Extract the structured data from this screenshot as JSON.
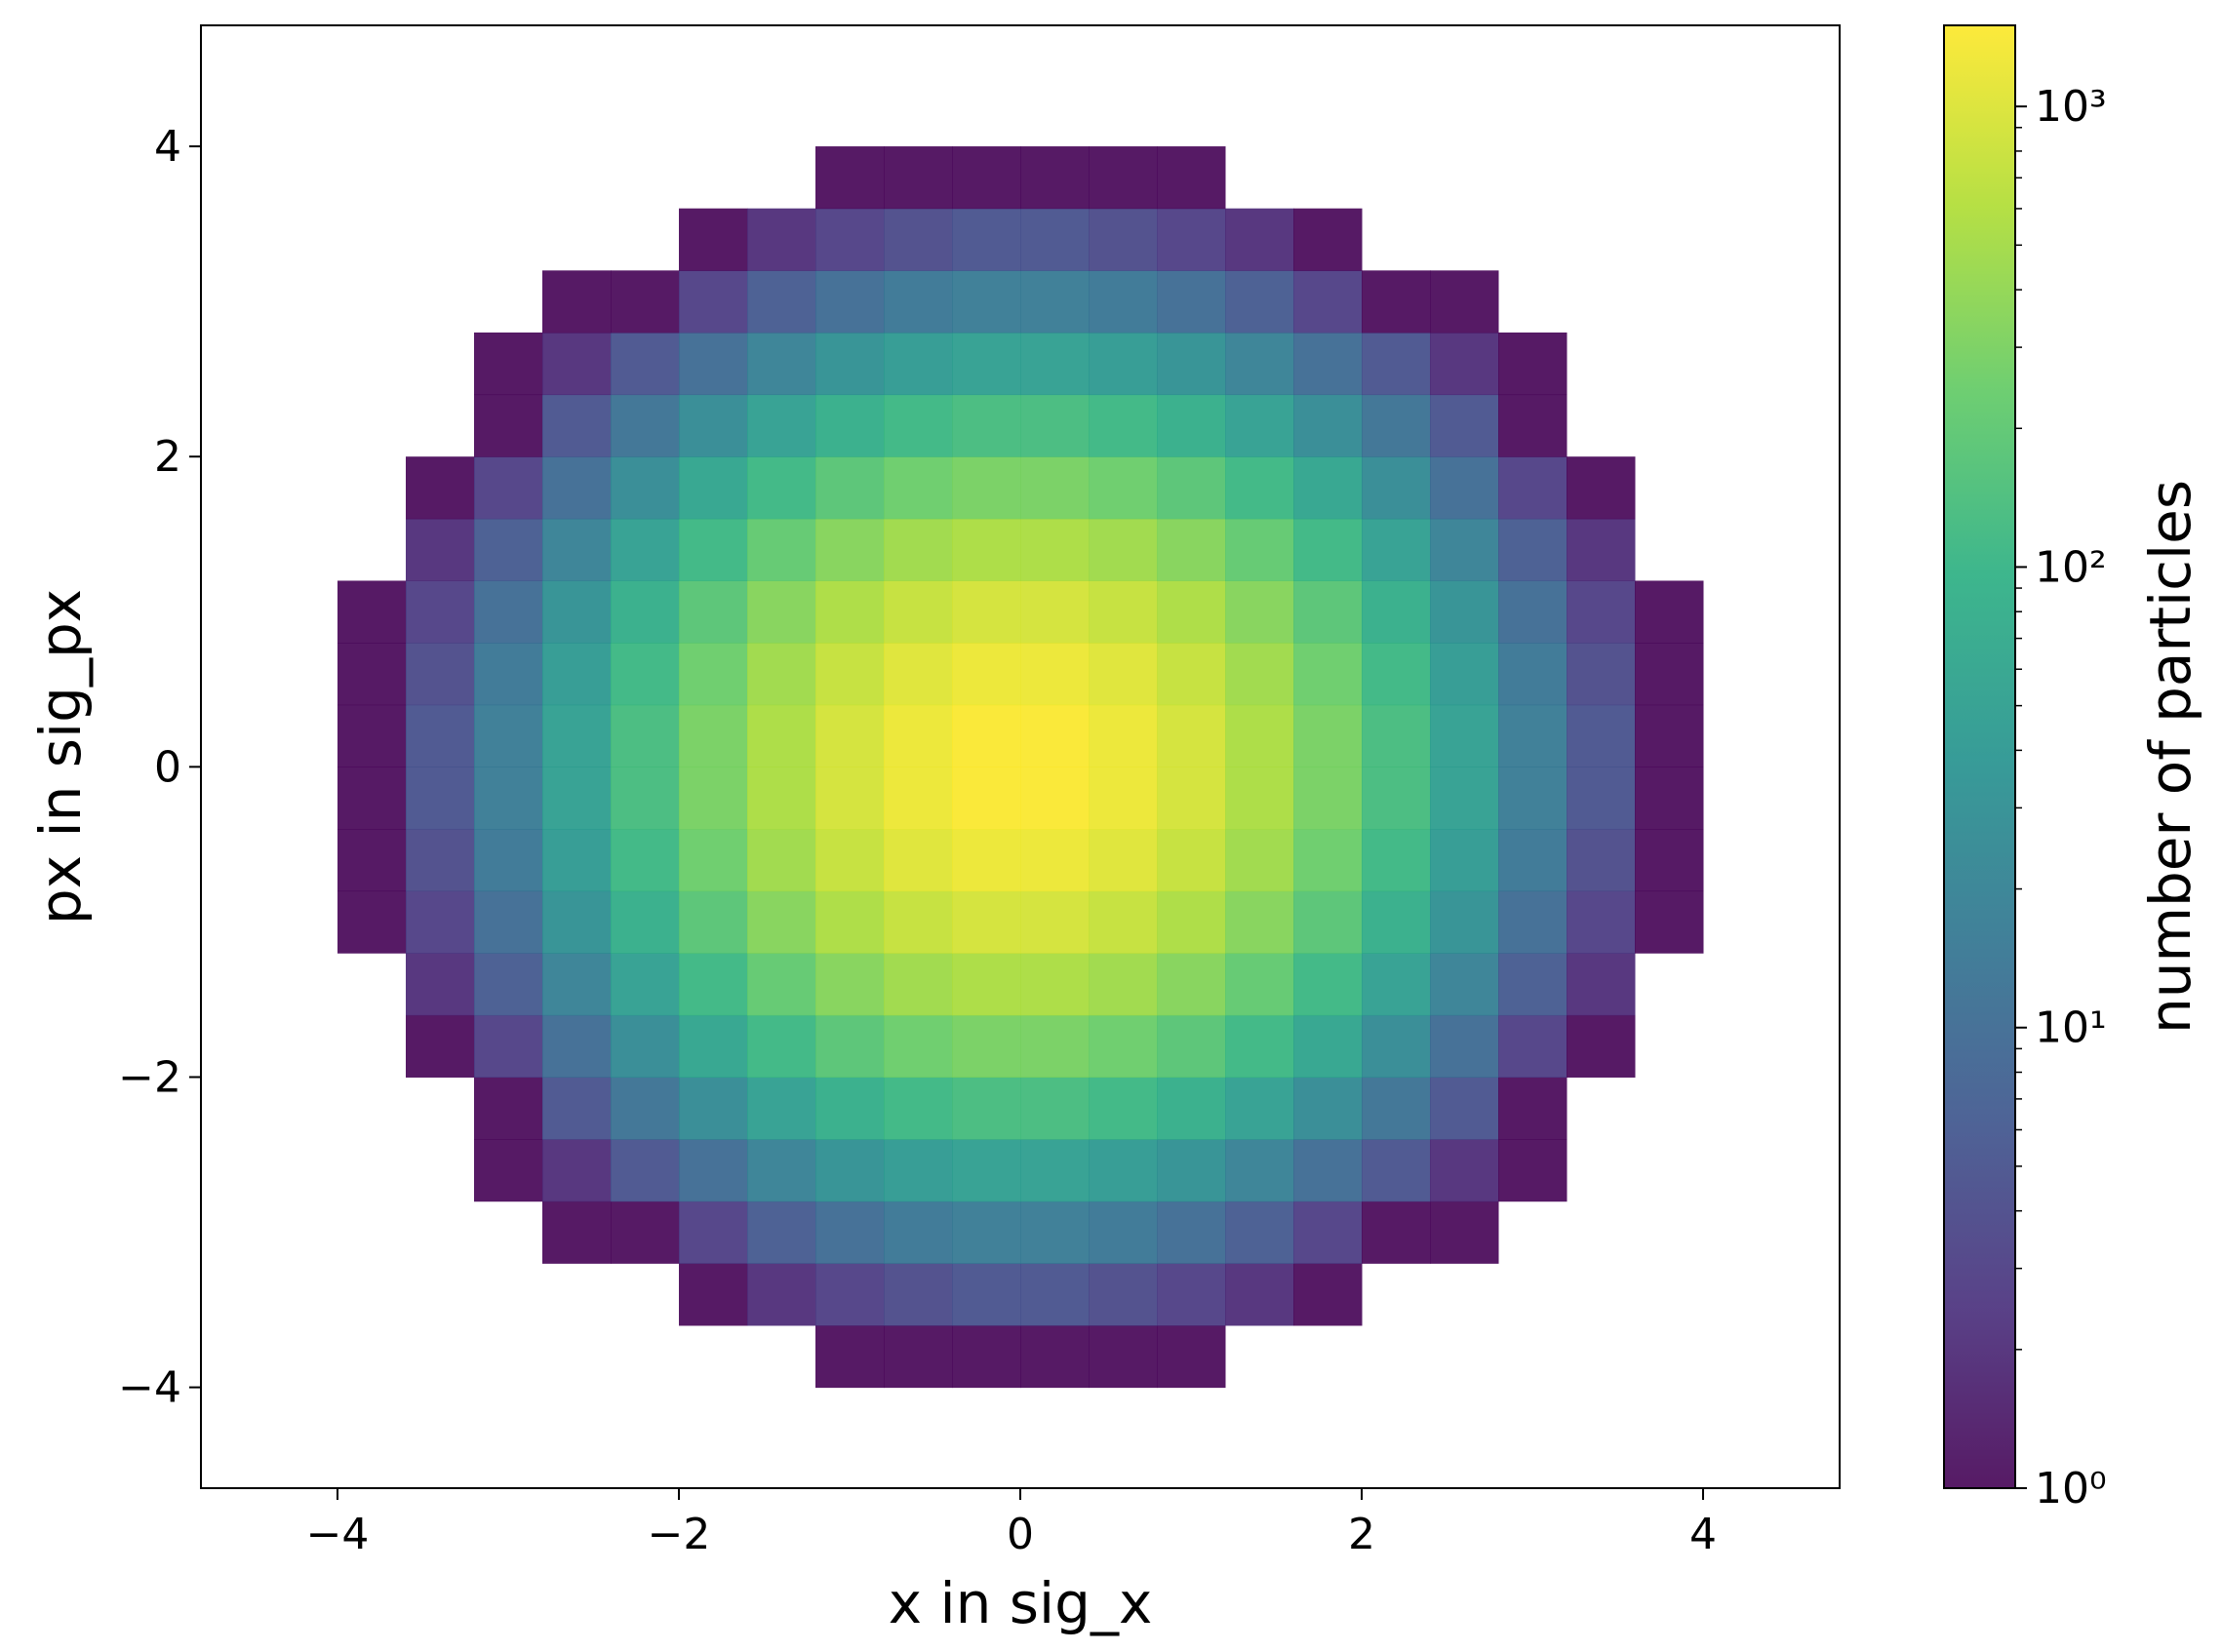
{
  "chart_data": {
    "type": "heatmap",
    "xlabel": "x in sig_x",
    "ylabel": "px in sig_px",
    "colorbar_label": "number of particles",
    "xlim": [
      -4.8,
      4.8
    ],
    "ylim": [
      -4.65,
      4.78
    ],
    "xticks": [
      {
        "value": -4,
        "label": "−4"
      },
      {
        "value": -2,
        "label": "−2"
      },
      0,
      2,
      4
    ],
    "yticks": [
      {
        "value": -4,
        "label": "−4"
      },
      {
        "value": -2,
        "label": "−2"
      },
      0,
      2,
      4
    ],
    "xbins": [
      -4.8,
      -4.4,
      -4.0,
      -3.6,
      -3.2,
      -2.8,
      -2.4,
      -2.0,
      -1.6,
      -1.2,
      -0.8,
      -0.4,
      0,
      0.4,
      0.8,
      1.2,
      1.6,
      2.0,
      2.4,
      2.8,
      3.2,
      3.6,
      4.0,
      4.4,
      4.8
    ],
    "ybins": [
      -4.8,
      -4.4,
      -4.0,
      -3.6,
      -3.2,
      -2.8,
      -2.4,
      -2.0,
      -1.6,
      -1.2,
      -0.8,
      -0.4,
      0,
      0.4,
      0.8,
      1.2,
      1.6,
      2.0,
      2.4,
      2.8,
      3.2,
      3.6,
      4.0,
      4.4,
      4.8
    ],
    "color_scale": "log",
    "clim": [
      1,
      1500
    ],
    "cticks": [
      {
        "value": 1,
        "label": "10⁰"
      },
      {
        "value": 10,
        "label": "10¹"
      },
      {
        "value": 100,
        "label": "10²"
      },
      {
        "value": 1000,
        "label": "10³"
      }
    ],
    "cminor": [
      2,
      3,
      4,
      5,
      6,
      7,
      8,
      9,
      20,
      30,
      40,
      50,
      60,
      70,
      80,
      90,
      200,
      300,
      400,
      500,
      600,
      700,
      800,
      900
    ],
    "colormap": [
      "#440154",
      "#472d7b",
      "#3b528b",
      "#2c728e",
      "#21918c",
      "#28ae80",
      "#5ec962",
      "#addc30",
      "#fde725"
    ],
    "opacity": 0.9,
    "values": [
      [
        null,
        null,
        null,
        null,
        null,
        null,
        null,
        null,
        null,
        null,
        null,
        null,
        null,
        null,
        null,
        null,
        null,
        null,
        null,
        null,
        null,
        null,
        null,
        null
      ],
      [
        null,
        null,
        null,
        null,
        null,
        null,
        null,
        null,
        null,
        null,
        null,
        null,
        null,
        null,
        null,
        null,
        null,
        null,
        null,
        null,
        null,
        null,
        null,
        null
      ],
      [
        null,
        null,
        null,
        null,
        null,
        null,
        null,
        null,
        null,
        1,
        1,
        1,
        1,
        1,
        1,
        null,
        null,
        null,
        null,
        null,
        null,
        null,
        null,
        null
      ],
      [
        null,
        null,
        null,
        null,
        null,
        null,
        null,
        1,
        2,
        3,
        4,
        5,
        5,
        4,
        3,
        2,
        1,
        null,
        null,
        null,
        null,
        null,
        null,
        null
      ],
      [
        null,
        null,
        null,
        null,
        null,
        1,
        1,
        3,
        6,
        10,
        14,
        16,
        16,
        14,
        10,
        6,
        3,
        1,
        1,
        null,
        null,
        null,
        null,
        null
      ],
      [
        null,
        null,
        null,
        null,
        1,
        2,
        5,
        10,
        19,
        31,
        43,
        50,
        50,
        43,
        31,
        19,
        10,
        5,
        2,
        1,
        null,
        null,
        null,
        null
      ],
      [
        null,
        null,
        null,
        null,
        1,
        5,
        12,
        26,
        50,
        81,
        111,
        131,
        131,
        111,
        81,
        50,
        26,
        12,
        5,
        1,
        null,
        null,
        null,
        null
      ],
      [
        null,
        null,
        null,
        1,
        3,
        10,
        26,
        59,
        111,
        180,
        248,
        291,
        291,
        248,
        180,
        111,
        59,
        26,
        10,
        3,
        1,
        null,
        null,
        null
      ],
      [
        null,
        null,
        null,
        2,
        6,
        19,
        50,
        111,
        211,
        341,
        470,
        551,
        551,
        470,
        341,
        211,
        111,
        50,
        19,
        6,
        2,
        null,
        null,
        null
      ],
      [
        null,
        null,
        1,
        3,
        10,
        31,
        81,
        180,
        341,
        552,
        760,
        892,
        892,
        760,
        552,
        341,
        180,
        81,
        31,
        10,
        3,
        1,
        null,
        null
      ],
      [
        null,
        null,
        1,
        4,
        14,
        43,
        111,
        248,
        470,
        760,
        1045,
        1227,
        1227,
        1045,
        760,
        470,
        248,
        111,
        43,
        14,
        4,
        1,
        null,
        null
      ],
      [
        null,
        null,
        1,
        5,
        16,
        50,
        131,
        291,
        551,
        892,
        1227,
        1441,
        1441,
        1227,
        892,
        551,
        291,
        131,
        50,
        16,
        5,
        1,
        null,
        null
      ],
      [
        null,
        null,
        1,
        5,
        16,
        50,
        131,
        291,
        551,
        892,
        1227,
        1441,
        1441,
        1227,
        892,
        551,
        291,
        131,
        50,
        16,
        5,
        1,
        null,
        null
      ],
      [
        null,
        null,
        1,
        4,
        14,
        43,
        111,
        248,
        470,
        760,
        1045,
        1227,
        1227,
        1045,
        760,
        470,
        248,
        111,
        43,
        14,
        4,
        1,
        null,
        null
      ],
      [
        null,
        null,
        1,
        3,
        10,
        31,
        81,
        180,
        341,
        552,
        760,
        892,
        892,
        760,
        552,
        341,
        180,
        81,
        31,
        10,
        3,
        1,
        null,
        null
      ],
      [
        null,
        null,
        null,
        2,
        6,
        19,
        50,
        111,
        211,
        341,
        470,
        551,
        551,
        470,
        341,
        211,
        111,
        50,
        19,
        6,
        2,
        null,
        null,
        null
      ],
      [
        null,
        null,
        null,
        1,
        3,
        10,
        26,
        59,
        111,
        180,
        248,
        291,
        291,
        248,
        180,
        111,
        59,
        26,
        10,
        3,
        1,
        null,
        null,
        null
      ],
      [
        null,
        null,
        null,
        null,
        1,
        5,
        12,
        26,
        50,
        81,
        111,
        131,
        131,
        111,
        81,
        50,
        26,
        12,
        5,
        1,
        null,
        null,
        null,
        null
      ],
      [
        null,
        null,
        null,
        null,
        1,
        2,
        5,
        10,
        19,
        31,
        43,
        50,
        50,
        43,
        31,
        19,
        10,
        5,
        2,
        1,
        null,
        null,
        null,
        null
      ],
      [
        null,
        null,
        null,
        null,
        null,
        1,
        1,
        3,
        6,
        10,
        14,
        16,
        16,
        14,
        10,
        6,
        3,
        1,
        1,
        null,
        null,
        null,
        null,
        null
      ],
      [
        null,
        null,
        null,
        null,
        null,
        null,
        null,
        1,
        2,
        3,
        4,
        5,
        5,
        4,
        3,
        2,
        1,
        null,
        null,
        null,
        null,
        null,
        null,
        null
      ],
      [
        null,
        null,
        null,
        null,
        null,
        null,
        null,
        null,
        null,
        1,
        1,
        1,
        1,
        1,
        1,
        null,
        null,
        null,
        null,
        null,
        null,
        null,
        null,
        null
      ],
      [
        null,
        null,
        null,
        null,
        null,
        null,
        null,
        null,
        null,
        null,
        null,
        null,
        null,
        null,
        null,
        null,
        null,
        null,
        null,
        null,
        null,
        null,
        null,
        null
      ],
      [
        null,
        null,
        null,
        null,
        null,
        null,
        null,
        null,
        null,
        null,
        null,
        null,
        null,
        null,
        null,
        null,
        null,
        null,
        null,
        null,
        null,
        null,
        null,
        null
      ]
    ]
  }
}
